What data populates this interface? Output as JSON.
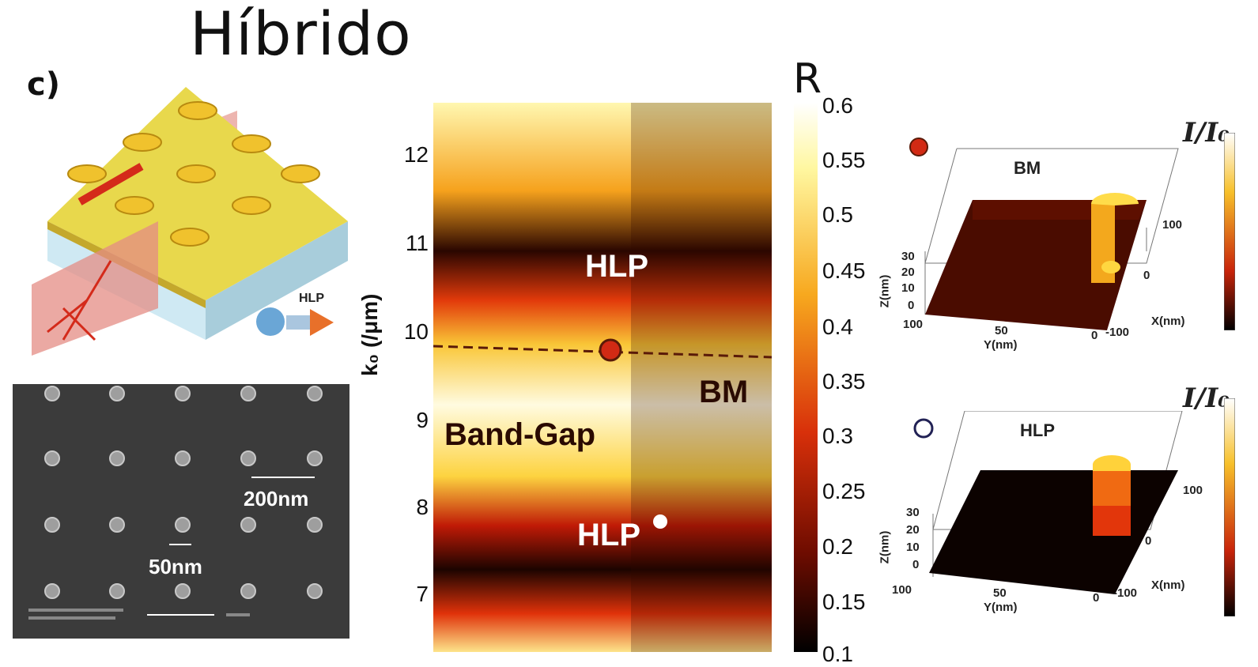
{
  "title": "Híbrido",
  "panel_label": "c)",
  "schematic": {
    "hlp_label": "HLP"
  },
  "sem": {
    "scale_200": "200nm",
    "scale_50": "50nm"
  },
  "map": {
    "ylabel": "k₀ (/μm)",
    "yticks": [
      "12",
      "11",
      "10",
      "9",
      "8",
      "7"
    ],
    "labels": {
      "hlp_top": "HLP",
      "bm": "BM",
      "band_gap": "Band-Gap",
      "hlp_bottom": "HLP"
    },
    "colorbar": {
      "title": "R",
      "ticks": [
        "0.6",
        "0.55",
        "0.5",
        "0.45",
        "0.4",
        "0.35",
        "0.3",
        "0.25",
        "0.2",
        "0.15",
        "0.1"
      ]
    }
  },
  "field_plots": [
    {
      "label": "BM",
      "intensity": "I/I₀",
      "z_label": "Z(nm)",
      "y_label": "Y(nm)",
      "x_label": "X(nm)",
      "z_ticks": [
        "30",
        "20",
        "10",
        "0"
      ],
      "y_ticks": [
        "100",
        "50",
        "0"
      ],
      "x_ticks": [
        "100",
        "0",
        "-100"
      ]
    },
    {
      "label": "HLP",
      "intensity": "I/I₀",
      "z_label": "Z(nm)",
      "y_label": "Y(nm)",
      "x_label": "X(nm)",
      "z_ticks": [
        "30",
        "20",
        "10",
        "0"
      ],
      "y_ticks": [
        "100",
        "50",
        "0"
      ],
      "x_ticks": [
        "100",
        "0",
        "-100"
      ]
    }
  ]
}
